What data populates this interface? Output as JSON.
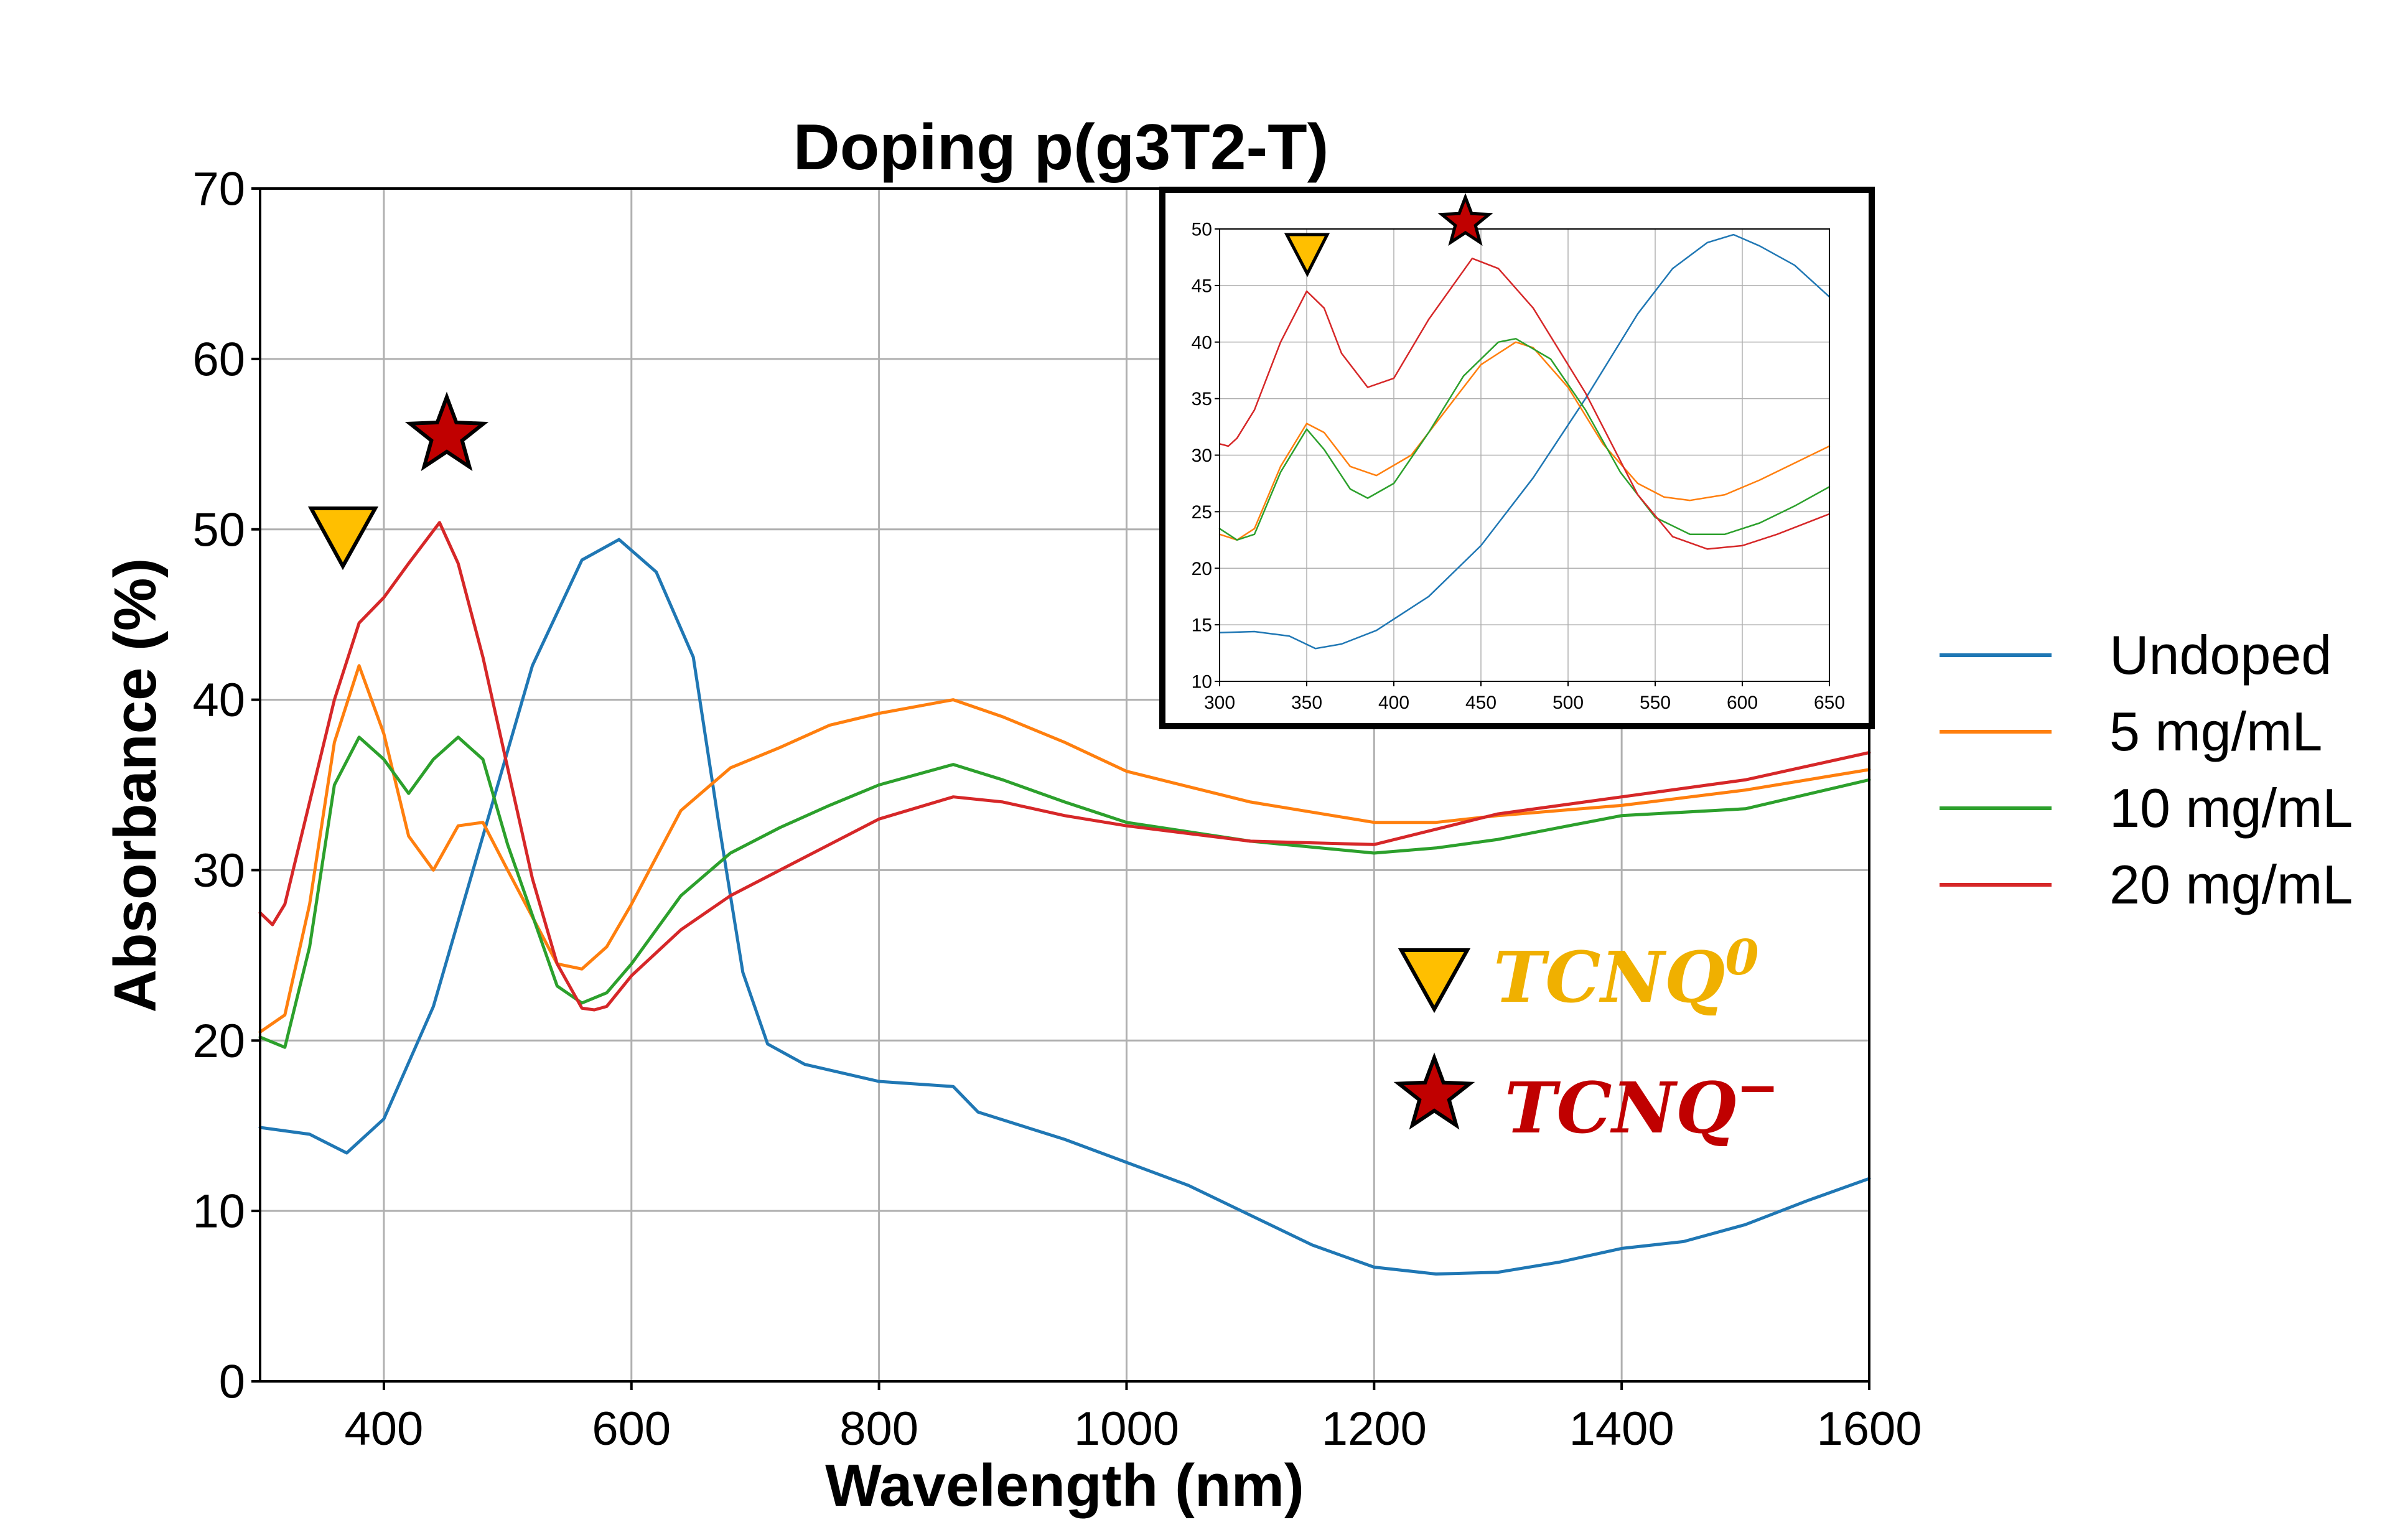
{
  "colors": {
    "undoped": "#1f77b4",
    "d5": "#ff7f0e",
    "d10": "#2ca02c",
    "d20": "#d62728",
    "triangle": "#ffbf00",
    "star": "#c00000",
    "tcnq0_text": "#f0b000",
    "tcnqm_text": "#c00000",
    "grid": "#b0b0b0"
  },
  "chart_data": [
    {
      "type": "line",
      "title": "Doping p(g3T2-T)",
      "xlabel": "Wavelength (nm)",
      "ylabel": "Absorbance (%)",
      "xlim": [
        300,
        1600
      ],
      "ylim": [
        0,
        70
      ],
      "xticks": [
        400,
        600,
        800,
        1000,
        1200,
        1400,
        1600
      ],
      "yticks": [
        0,
        10,
        20,
        30,
        40,
        50,
        60,
        70
      ],
      "grid": true,
      "legend_position": "right, outside plot",
      "series": [
        {
          "name": "Undoped",
          "color_key": "undoped",
          "x": [
            300,
            340,
            370,
            400,
            440,
            480,
            520,
            560,
            590,
            620,
            650,
            670,
            690,
            710,
            740,
            800,
            860,
            880,
            950,
            1050,
            1150,
            1200,
            1250,
            1300,
            1350,
            1400,
            1450,
            1500,
            1550,
            1600
          ],
          "y": [
            14.9,
            14.5,
            13.4,
            15.4,
            22.0,
            32.0,
            42.0,
            48.2,
            49.4,
            47.5,
            42.5,
            33.0,
            24.0,
            19.8,
            18.6,
            17.6,
            17.3,
            15.8,
            14.2,
            11.5,
            8.0,
            6.7,
            6.3,
            6.4,
            7.0,
            7.8,
            8.2,
            9.2,
            10.6,
            11.9
          ]
        },
        {
          "name": "5 mg/mL",
          "color_key": "d5",
          "x": [
            300,
            320,
            340,
            360,
            380,
            400,
            420,
            440,
            460,
            480,
            500,
            540,
            560,
            580,
            600,
            640,
            680,
            720,
            760,
            800,
            860,
            900,
            950,
            1000,
            1100,
            1200,
            1250,
            1300,
            1400,
            1500,
            1600
          ],
          "y": [
            20.5,
            21.5,
            28.0,
            37.5,
            42.0,
            38.0,
            32.0,
            30.0,
            32.6,
            32.8,
            30.0,
            24.5,
            24.2,
            25.5,
            28.0,
            33.5,
            36.0,
            37.2,
            38.5,
            39.2,
            40.0,
            39.0,
            37.5,
            35.8,
            34.0,
            32.8,
            32.8,
            33.2,
            33.8,
            34.7,
            35.9
          ]
        },
        {
          "name": "10 mg/mL",
          "color_key": "d10",
          "x": [
            300,
            320,
            340,
            360,
            380,
            400,
            420,
            440,
            460,
            480,
            500,
            540,
            560,
            580,
            600,
            640,
            680,
            720,
            760,
            800,
            860,
            900,
            950,
            1000,
            1100,
            1200,
            1250,
            1300,
            1400,
            1500,
            1600
          ],
          "y": [
            20.2,
            19.6,
            25.5,
            35.0,
            37.8,
            36.5,
            34.5,
            36.5,
            37.8,
            36.5,
            31.5,
            23.2,
            22.2,
            22.8,
            24.5,
            28.5,
            31.0,
            32.5,
            33.8,
            35.0,
            36.2,
            35.3,
            34.0,
            32.8,
            31.7,
            31.0,
            31.3,
            31.8,
            33.2,
            33.6,
            35.3
          ]
        },
        {
          "name": "20 mg/mL",
          "color_key": "d20",
          "x": [
            300,
            310,
            320,
            340,
            360,
            380,
            400,
            420,
            445,
            460,
            480,
            500,
            520,
            540,
            560,
            570,
            580,
            600,
            640,
            680,
            720,
            760,
            800,
            860,
            900,
            950,
            1000,
            1100,
            1200,
            1250,
            1300,
            1400,
            1500,
            1600
          ],
          "y": [
            27.5,
            26.8,
            28.0,
            34.0,
            40.0,
            44.5,
            46.0,
            48.0,
            50.4,
            48.0,
            42.5,
            36.0,
            29.5,
            24.5,
            21.9,
            21.8,
            22.0,
            23.8,
            26.5,
            28.5,
            30.0,
            31.5,
            33.0,
            34.3,
            34.0,
            33.2,
            32.6,
            31.7,
            31.5,
            32.4,
            33.3,
            34.3,
            35.3,
            36.9
          ]
        }
      ]
    },
    {
      "type": "line",
      "title": "",
      "xlabel": "",
      "ylabel": "",
      "xlim": [
        300,
        650
      ],
      "ylim": [
        10,
        50
      ],
      "xticks": [
        300,
        350,
        400,
        450,
        500,
        550,
        600,
        650
      ],
      "yticks": [
        10,
        15,
        20,
        25,
        30,
        35,
        40,
        45,
        50
      ],
      "grid": true,
      "legend_position": "none",
      "series": [
        {
          "color_key": "undoped",
          "x": [
            300,
            320,
            340,
            355,
            370,
            390,
            420,
            450,
            480,
            510,
            540,
            560,
            580,
            595,
            610,
            630,
            650
          ],
          "y": [
            14.3,
            14.4,
            14.0,
            12.9,
            13.3,
            14.5,
            17.5,
            22.0,
            28.0,
            35.0,
            42.5,
            46.5,
            48.8,
            49.5,
            48.5,
            46.8,
            44.0
          ]
        },
        {
          "color_key": "d5",
          "x": [
            300,
            310,
            320,
            335,
            350,
            360,
            375,
            390,
            410,
            430,
            450,
            470,
            480,
            500,
            520,
            540,
            555,
            570,
            590,
            610,
            630,
            650
          ],
          "y": [
            23.0,
            22.5,
            23.5,
            29.0,
            32.8,
            32.0,
            29.0,
            28.2,
            30.0,
            34.0,
            38.0,
            40.0,
            39.5,
            36.0,
            31.0,
            27.5,
            26.3,
            26.0,
            26.5,
            27.8,
            29.3,
            30.8
          ]
        },
        {
          "color_key": "d10",
          "x": [
            300,
            310,
            320,
            335,
            350,
            360,
            375,
            385,
            400,
            420,
            440,
            460,
            470,
            490,
            510,
            530,
            550,
            570,
            590,
            610,
            630,
            650
          ],
          "y": [
            23.5,
            22.5,
            23.0,
            28.5,
            32.3,
            30.5,
            27.0,
            26.2,
            27.5,
            32.0,
            37.0,
            40.0,
            40.3,
            38.5,
            34.0,
            28.5,
            24.5,
            23.0,
            23.0,
            24.0,
            25.5,
            27.2
          ]
        },
        {
          "color_key": "d20",
          "x": [
            300,
            305,
            310,
            320,
            335,
            350,
            360,
            370,
            385,
            400,
            420,
            445,
            460,
            480,
            510,
            540,
            560,
            580,
            600,
            620,
            650
          ],
          "y": [
            31.0,
            30.8,
            31.5,
            34.0,
            40.0,
            44.5,
            43.0,
            39.0,
            36.0,
            36.8,
            42.0,
            47.4,
            46.5,
            43.0,
            35.5,
            26.5,
            22.8,
            21.7,
            22.0,
            23.0,
            24.8
          ]
        }
      ]
    }
  ],
  "markers": {
    "triangle_name": "triangle-down-marker",
    "star_name": "star-marker"
  },
  "annotations": {
    "tcnq_base": "TCNQ",
    "tcnq0_sup": "0",
    "tcnqm_sup": "−"
  }
}
